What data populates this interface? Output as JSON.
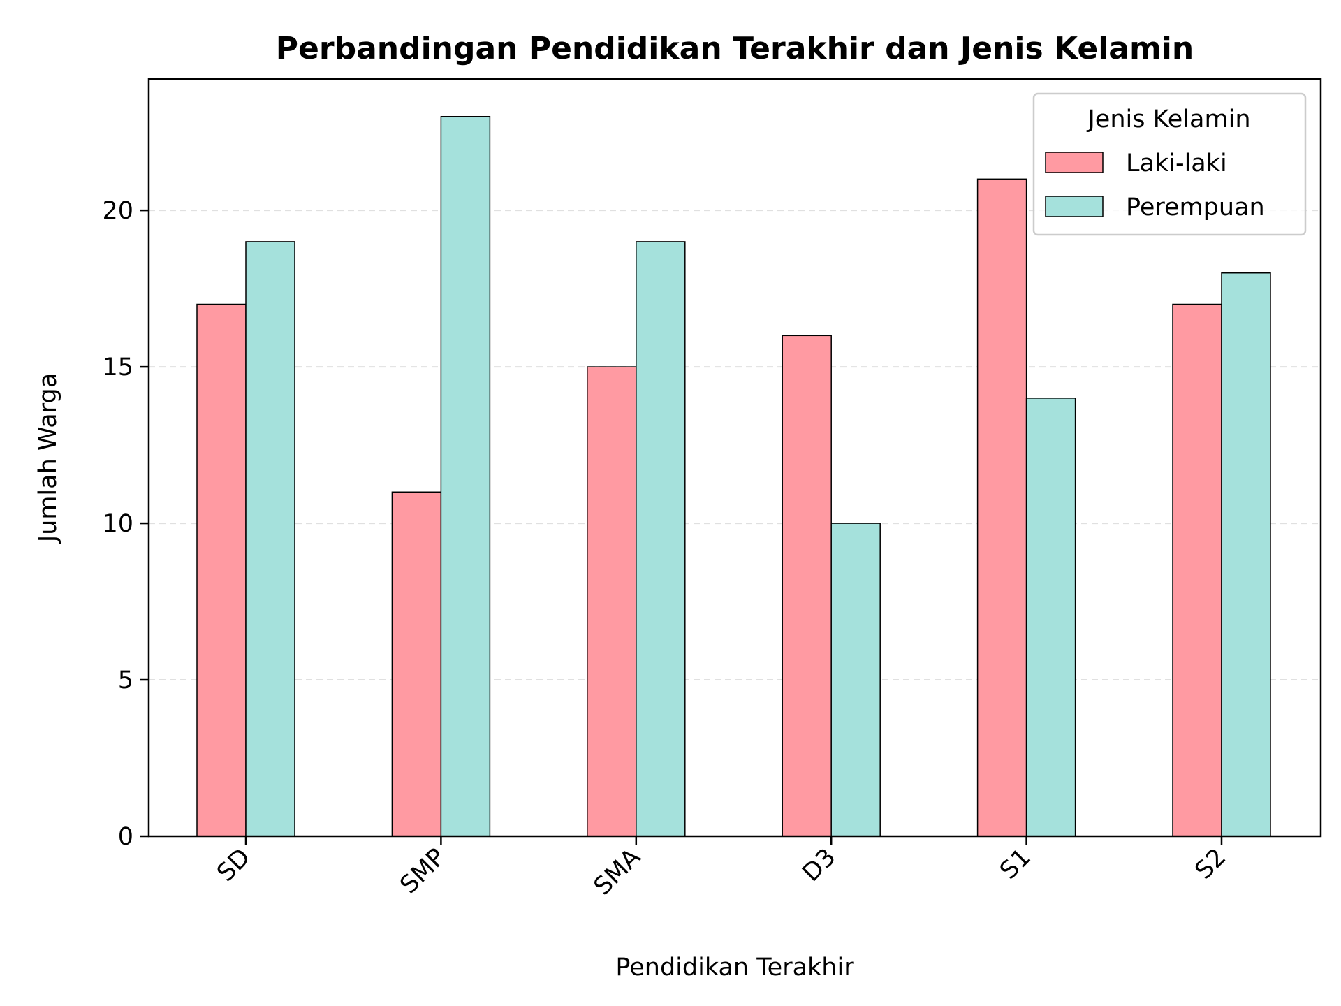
{
  "chart_data": {
    "type": "bar",
    "title": "Perbandingan Pendidikan Terakhir dan Jenis Kelamin",
    "xlabel": "Pendidikan Terakhir",
    "ylabel": "Jumlah Warga",
    "categories": [
      "SD",
      "SMP",
      "SMA",
      "D3",
      "S1",
      "S2"
    ],
    "series": [
      {
        "name": "Laki-laki",
        "color": "#ff9aa2",
        "values": [
          17,
          11,
          15,
          16,
          21,
          17
        ]
      },
      {
        "name": "Perempuan",
        "color": "#a5e1dc",
        "values": [
          19,
          23,
          19,
          10,
          14,
          18
        ]
      }
    ],
    "ylim": [
      0,
      24.2
    ],
    "yticks": [
      0,
      5,
      10,
      15,
      20
    ],
    "grid": "y-dashed",
    "legend": {
      "title": "Jenis Kelamin",
      "position": "top-right"
    }
  }
}
